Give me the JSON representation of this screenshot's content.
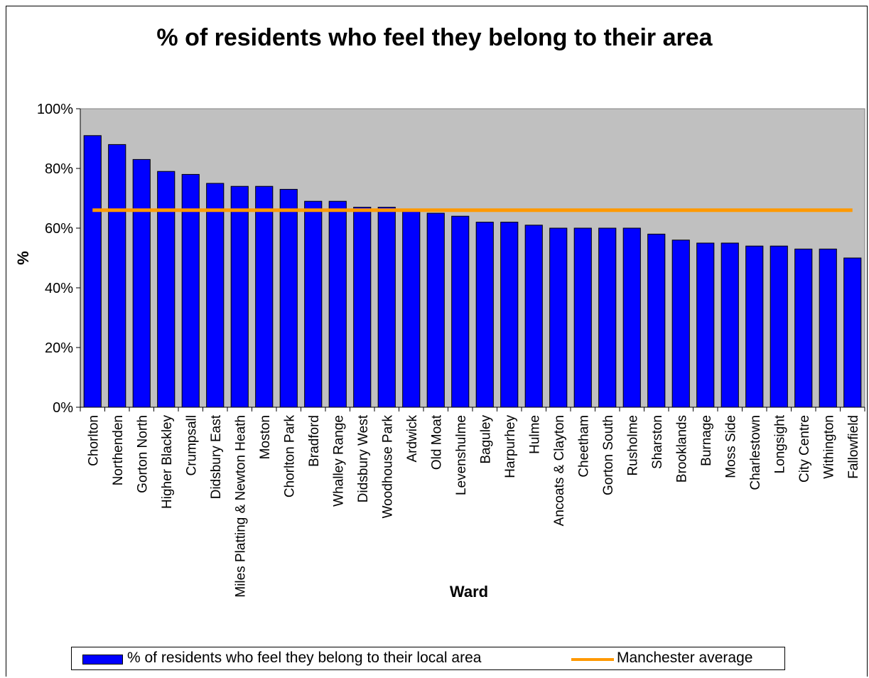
{
  "chart_data": {
    "type": "bar",
    "title": "% of residents who feel they belong to their area",
    "xlabel": "Ward",
    "ylabel": "%",
    "ylim": [
      0,
      100
    ],
    "yticks": [
      "0%",
      "20%",
      "40%",
      "60%",
      "80%",
      "100%"
    ],
    "ytick_values": [
      0,
      20,
      40,
      60,
      80,
      100
    ],
    "grid": false,
    "plot_background": "#c0c0c0",
    "legend_placement": "bottom",
    "categories": [
      "Chorlton",
      "Northenden",
      "Gorton North",
      "Higher Blackley",
      "Crumpsall",
      "Didsbury East",
      "Miles Platting & Newton Heath",
      "Moston",
      "Chorlton Park",
      "Bradford",
      "Whalley Range",
      "Didsbury West",
      "Woodhouse Park",
      "Ardwick",
      "Old Moat",
      "Levenshulme",
      "Baguley",
      "Harpurhey",
      "Hulme",
      "Ancoats & Clayton",
      "Cheetham",
      "Gorton South",
      "Rusholme",
      "Sharston",
      "Brooklands",
      "Burnage",
      "Moss Side",
      "Charlestown",
      "Longsight",
      "City Centre",
      "Withington",
      "Fallowfield"
    ],
    "series": [
      {
        "name": "% of residents who feel they belong to their local area",
        "type": "bar",
        "color": "#0000ff",
        "values": [
          91,
          88,
          83,
          79,
          78,
          75,
          74,
          74,
          73,
          69,
          69,
          67,
          67,
          66,
          65,
          64,
          62,
          62,
          61,
          60,
          60,
          60,
          60,
          58,
          56,
          55,
          55,
          54,
          54,
          53,
          53,
          50
        ]
      },
      {
        "name": "Manchester average",
        "type": "line",
        "color": "#ff9900",
        "value": 66
      }
    ]
  }
}
